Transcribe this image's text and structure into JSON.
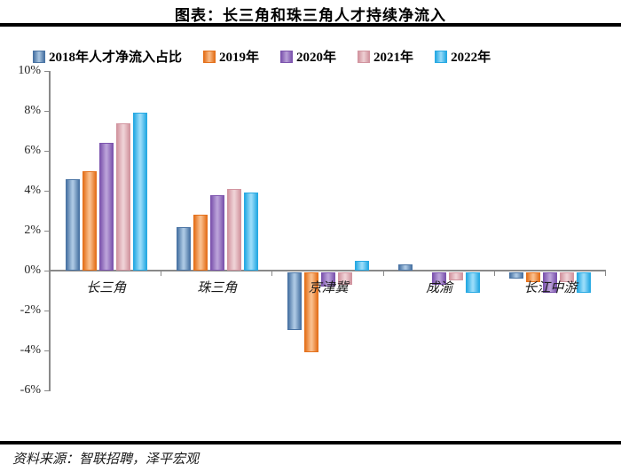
{
  "title": "图表：长三角和珠三角人才持续净流入",
  "source": "资料来源：智联招聘，泽平宏观",
  "axis_color": "#898989",
  "chart_data": {
    "type": "bar",
    "title": "图表：长三角和珠三角人才持续净流入",
    "categories": [
      "长三角",
      "珠三角",
      "京津冀",
      "成渝",
      "长江中游"
    ],
    "series": [
      {
        "name": "2018年人才净流入占比",
        "dark": "#4a74a4",
        "light": "#aac6e2",
        "values": [
          4.6,
          2.2,
          -2.9,
          0.3,
          -0.3
        ]
      },
      {
        "name": "2019年",
        "dark": "#e4711c",
        "light": "#f9bd8a",
        "values": [
          5.0,
          2.8,
          -4.0,
          0.0,
          -0.5
        ]
      },
      {
        "name": "2020年",
        "dark": "#7d55ae",
        "light": "#b9a0d8",
        "values": [
          6.4,
          3.8,
          -0.7,
          -0.6,
          -1.0
        ]
      },
      {
        "name": "2021年",
        "dark": "#d295a0",
        "light": "#eed0d4",
        "values": [
          7.4,
          4.1,
          -0.6,
          -0.4,
          -0.5
        ]
      },
      {
        "name": "2022年",
        "dark": "#27a9e3",
        "light": "#97dbf9",
        "values": [
          7.9,
          3.9,
          0.5,
          -1.0,
          -1.0
        ]
      }
    ],
    "ylim": [
      -6,
      10
    ],
    "ytick_step": 2,
    "ytick_labels": [
      "10%",
      "8%",
      "6%",
      "4%",
      "2%",
      "0%",
      "-2%",
      "-4%",
      "-6%"
    ],
    "xlabel": "",
    "ylabel": "",
    "grid": false,
    "legend_position": "top-left"
  }
}
